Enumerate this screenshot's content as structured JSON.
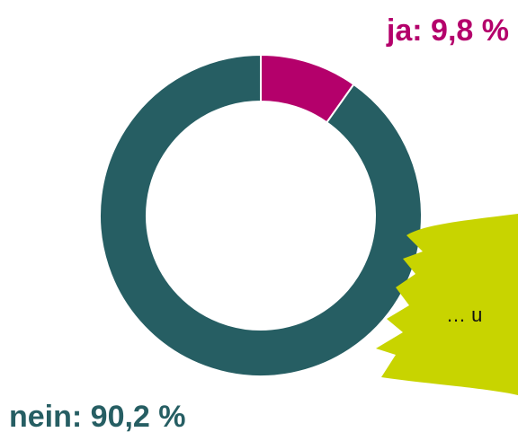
{
  "chart_data": {
    "type": "donut",
    "values": [
      9.8,
      90.2
    ],
    "value_labels": [
      "ja: 9,8 %",
      "nein: 90,2 %"
    ],
    "colors": [
      "#b4006b",
      "#265e63"
    ],
    "annotation": "… u"
  }
}
